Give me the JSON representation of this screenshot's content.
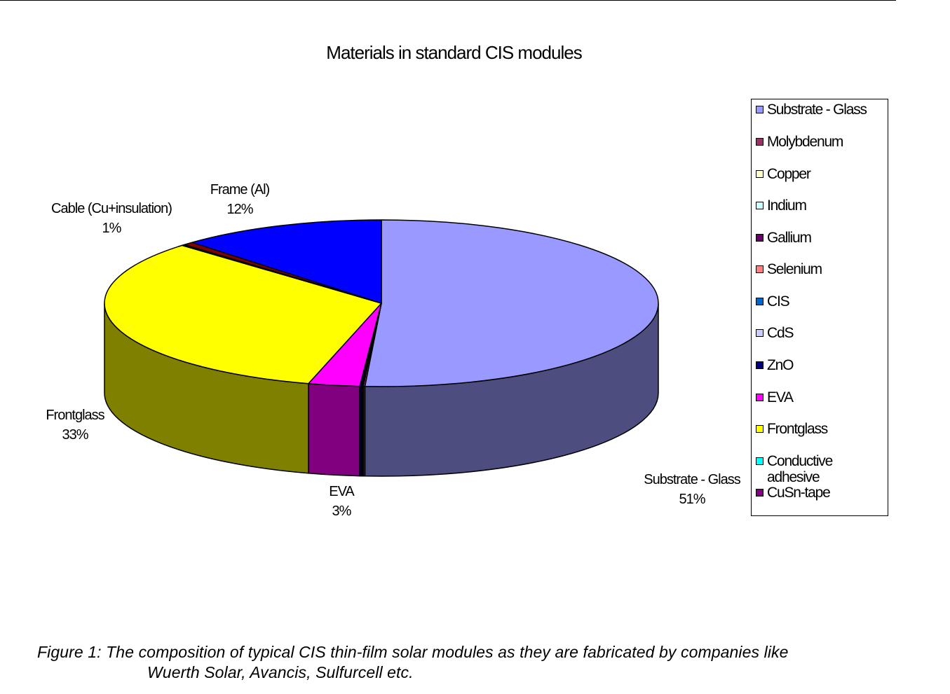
{
  "chart_data": {
    "type": "pie",
    "title": "Materials in standard CIS modules",
    "slices": [
      {
        "name": "Substrate - Glass",
        "value": 51,
        "color": "#9999ff",
        "side": "#4d4d80"
      },
      {
        "name": "Molybdenum",
        "value": 0.1,
        "color": "#993366",
        "side": "#4d1a33"
      },
      {
        "name": "Copper",
        "value": 0.01,
        "color": "#ffffcc",
        "side": "#808066"
      },
      {
        "name": "Indium",
        "value": 0.01,
        "color": "#ccffff",
        "side": "#668080"
      },
      {
        "name": "Gallium",
        "value": 0.01,
        "color": "#660066",
        "side": "#330033"
      },
      {
        "name": "Selenium",
        "value": 0.01,
        "color": "#ff8080",
        "side": "#804040"
      },
      {
        "name": "CIS",
        "value": 0.05,
        "color": "#0066cc",
        "side": "#003366"
      },
      {
        "name": "CdS",
        "value": 0.01,
        "color": "#ccccff",
        "side": "#666680"
      },
      {
        "name": "ZnO",
        "value": 0.1,
        "color": "#000080",
        "side": "#000040"
      },
      {
        "name": "EVA",
        "value": 3,
        "color": "#ff00ff",
        "side": "#800080"
      },
      {
        "name": "Frontglass",
        "value": 33,
        "color": "#ffff00",
        "side": "#808000"
      },
      {
        "name": "Conductive adhesive",
        "value": 0.1,
        "color": "#00ffff",
        "side": "#008080"
      },
      {
        "name": "CuSn-tape",
        "value": 0.1,
        "color": "#800080",
        "side": "#400040"
      },
      {
        "name": "Cable (Cu+insulation)",
        "value": 0.6,
        "color": "#800000",
        "side": "#400000"
      },
      {
        "name": "Frame (Al)",
        "value": 12,
        "color": "#0000ff",
        "side": "#000080"
      }
    ],
    "data_labels": [
      {
        "name": "Frame (Al)",
        "pct": "12%"
      },
      {
        "name": "Cable (Cu+insulation)",
        "pct": "1%"
      },
      {
        "name": "Frontglass",
        "pct": "33%"
      },
      {
        "name": "EVA",
        "pct": "3%"
      },
      {
        "name": "Substrate - Glass",
        "pct": "51%"
      }
    ],
    "legend": {
      "placement": "right",
      "entries": [
        {
          "label": "Substrate - Glass",
          "color": "#9999ff"
        },
        {
          "label": "Molybdenum",
          "color": "#993366"
        },
        {
          "label": "Copper",
          "color": "#ffffcc"
        },
        {
          "label": "Indium",
          "color": "#ccffff"
        },
        {
          "label": "Gallium",
          "color": "#660066"
        },
        {
          "label": "Selenium",
          "color": "#ff8080"
        },
        {
          "label": "CIS",
          "color": "#0066cc"
        },
        {
          "label": "CdS",
          "color": "#ccccff"
        },
        {
          "label": "ZnO",
          "color": "#000080"
        },
        {
          "label": "EVA",
          "color": "#ff00ff"
        },
        {
          "label": "Frontglass",
          "color": "#ffff00"
        },
        {
          "label": "Conductive\nadhesive",
          "color": "#00ffff"
        },
        {
          "label": "CuSn-tape",
          "color": "#800080"
        }
      ]
    }
  },
  "caption": {
    "line1": "Figure 1: The composition of typical CIS thin-film solar modules as they are fabricated by companies like",
    "line2": "Wuerth Solar, Avancis, Sulfurcell etc."
  }
}
